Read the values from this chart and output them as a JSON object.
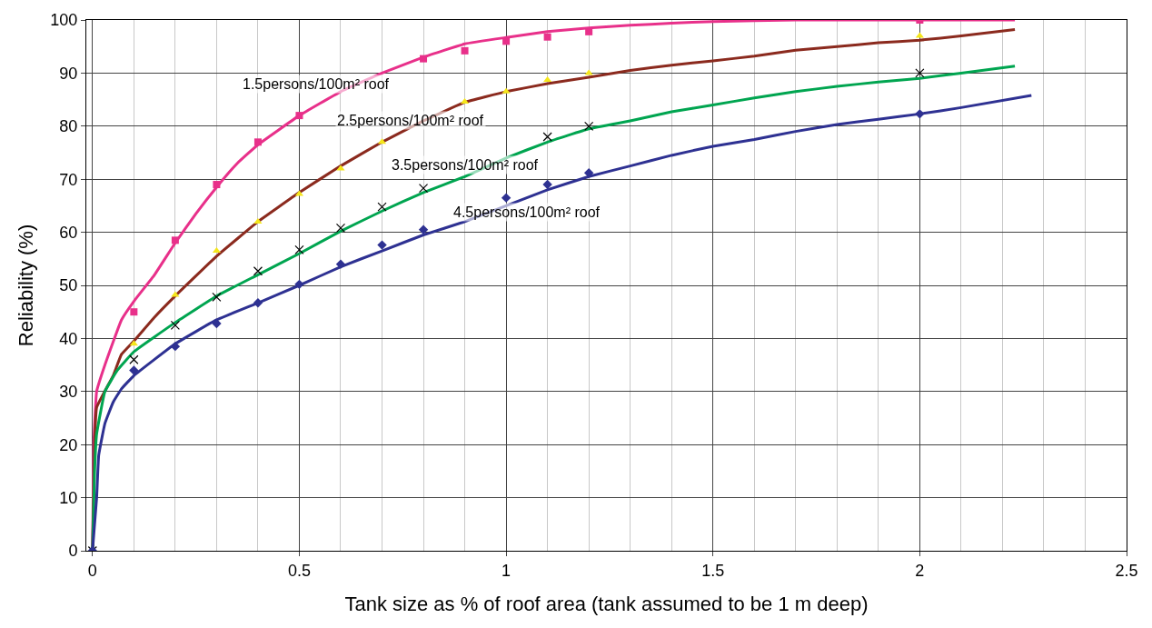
{
  "chart_data": {
    "type": "line",
    "xlabel": "Tank size as % of roof area (tank assumed to be 1 m deep)",
    "ylabel": "Reliability (%)",
    "xlim": [
      -0.015,
      2.5
    ],
    "xticks": [
      0,
      0.5,
      1,
      1.5,
      2,
      2.5
    ],
    "ylim": [
      0,
      100
    ],
    "yticks": [
      0,
      10,
      20,
      30,
      40,
      50,
      60,
      70,
      80,
      90,
      100
    ],
    "grid": true,
    "series": [
      {
        "color": "#e8308a",
        "x": [
          0,
          0.003,
          0.01,
          0.03,
          0.07,
          0.1,
          0.15,
          0.2,
          0.25,
          0.3,
          0.35,
          0.4,
          0.5,
          0.6,
          0.7,
          0.8,
          0.9,
          1.0,
          1.1,
          1.2,
          1.3,
          1.4,
          1.5,
          1.7,
          2.0,
          2.2,
          2.23
        ],
        "values": [
          0,
          20,
          30,
          35,
          43.5,
          47,
          52,
          58,
          63.5,
          68.5,
          73,
          76.5,
          82,
          86.5,
          90,
          93,
          95.5,
          96.7,
          97.8,
          98.5,
          99,
          99.4,
          99.7,
          100,
          100,
          100,
          100
        ]
      },
      {
        "color": "#8b2a1e",
        "x": [
          0,
          0.005,
          0.01,
          0.05,
          0.07,
          0.1,
          0.15,
          0.2,
          0.3,
          0.4,
          0.5,
          0.6,
          0.7,
          0.8,
          0.9,
          1.0,
          1.1,
          1.2,
          1.3,
          1.4,
          1.5,
          1.6,
          1.7,
          1.8,
          1.9,
          2.0,
          2.1,
          2.23
        ],
        "values": [
          0,
          20,
          27,
          33,
          37,
          39.5,
          44,
          48,
          55.5,
          62,
          67.5,
          72.5,
          77,
          81,
          84.5,
          86.5,
          88,
          89.2,
          90.5,
          91.5,
          92.3,
          93.2,
          94.3,
          95,
          95.7,
          96.2,
          97,
          98.2
        ]
      },
      {
        "color": "#00a550",
        "x": [
          0,
          0.005,
          0.01,
          0.03,
          0.06,
          0.1,
          0.2,
          0.3,
          0.4,
          0.5,
          0.6,
          0.7,
          0.8,
          0.9,
          1.0,
          1.1,
          1.2,
          1.3,
          1.4,
          1.5,
          1.6,
          1.7,
          1.8,
          1.9,
          2.0,
          2.1,
          2.23
        ],
        "values": [
          0,
          15,
          22,
          30,
          34,
          37.5,
          43,
          48,
          52,
          56,
          60.2,
          64,
          67.5,
          70.5,
          74,
          77,
          79.5,
          81,
          82.7,
          84,
          85.3,
          86.5,
          87.5,
          88.3,
          89,
          90,
          91.3
        ]
      },
      {
        "color": "#2e3192",
        "x": [
          0,
          0.01,
          0.015,
          0.03,
          0.05,
          0.07,
          0.1,
          0.2,
          0.3,
          0.4,
          0.5,
          0.6,
          0.7,
          0.8,
          0.9,
          1.0,
          1.1,
          1.2,
          1.3,
          1.4,
          1.5,
          1.6,
          1.7,
          1.8,
          1.9,
          2.0,
          2.1,
          2.27
        ],
        "values": [
          0,
          10,
          18,
          24,
          28,
          30.5,
          33,
          39,
          43.5,
          46.7,
          50,
          53.5,
          56.5,
          59.5,
          62,
          65,
          68,
          70.5,
          72.5,
          74.5,
          76.2,
          77.5,
          79,
          80.3,
          81.3,
          82.3,
          83.5,
          85.8
        ]
      },
      {
        "type": "scatter",
        "marker": "square",
        "color": "#e8308a",
        "x": [
          0.1,
          0.2,
          0.3,
          0.4,
          0.5,
          0.8,
          0.9,
          1.0,
          1.1,
          1.2,
          2.0
        ],
        "values": [
          45,
          58.5,
          69,
          77,
          82,
          92.7,
          94.2,
          96,
          96.8,
          97.8,
          100
        ]
      },
      {
        "type": "scatter",
        "marker": "triangle",
        "color": "#f5e61b",
        "x": [
          0.1,
          0.2,
          0.3,
          0.4,
          0.5,
          0.6,
          0.7,
          0.9,
          1.0,
          1.1,
          1.2,
          2.0
        ],
        "values": [
          39,
          48.2,
          56.5,
          62,
          67.2,
          72,
          77,
          84.6,
          86.5,
          88.7,
          90,
          97
        ]
      },
      {
        "type": "scatter",
        "marker": "cross",
        "color": "#000000",
        "x": [
          0,
          0.1,
          0.2,
          0.3,
          0.4,
          0.5,
          0.6,
          0.7,
          0.8,
          1.1,
          1.2,
          2.0
        ],
        "values": [
          0,
          36,
          42.5,
          47.8,
          52.7,
          56.7,
          60.8,
          64.8,
          68.3,
          78,
          80,
          90
        ]
      },
      {
        "type": "scatter",
        "marker": "diamond",
        "color": "#2e3192",
        "x": [
          0,
          0.1,
          0.2,
          0.3,
          0.4,
          0.5,
          0.6,
          0.7,
          0.8,
          1.0,
          1.1,
          1.2,
          2.0
        ],
        "values": [
          0,
          34,
          38.5,
          42.8,
          46.7,
          50.2,
          54,
          57.6,
          60.5,
          66.5,
          69,
          71.2,
          82.3
        ]
      }
    ],
    "annotations": [
      "1.5persons/100m² roof",
      "2.5persons/100m² roof",
      "3.5persons/100m² roof",
      "4.5persons/100m² roof"
    ]
  }
}
